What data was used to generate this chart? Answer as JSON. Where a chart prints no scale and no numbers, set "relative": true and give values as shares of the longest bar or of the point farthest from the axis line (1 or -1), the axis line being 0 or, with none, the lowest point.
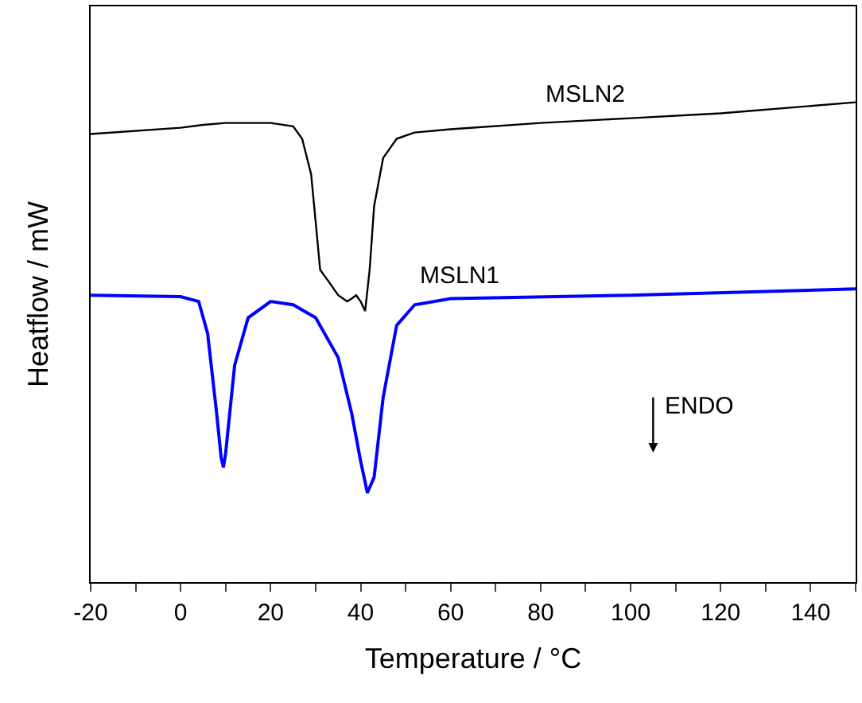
{
  "chart_data": {
    "type": "line",
    "relative": true,
    "xlabel": "Temperature / °C",
    "ylabel": "Heatflow / mW",
    "xlim": [
      -20,
      150
    ],
    "xticks": [
      -20,
      {
        "value": -10,
        "label": null
      },
      0,
      {
        "value": 10,
        "label": null
      },
      20,
      {
        "value": 30,
        "label": null
      },
      40,
      {
        "value": 50,
        "label": null
      },
      60,
      {
        "value": 70,
        "label": null
      },
      80,
      {
        "value": 90,
        "label": null
      },
      100,
      {
        "value": 110,
        "label": null
      },
      120,
      {
        "value": 130,
        "label": null
      },
      140,
      {
        "value": 150,
        "label": null
      }
    ],
    "legend": false,
    "marker": "none",
    "line_style": "solid",
    "tick_labels": "x",
    "annotations": [
      "ENDO"
    ],
    "series": [
      {
        "name": "MSLN2",
        "color": "#000000",
        "x": [
          -20,
          0,
          5,
          10,
          20,
          25,
          27,
          29,
          30,
          31,
          33,
          35,
          37,
          38,
          39,
          40,
          41,
          42,
          43,
          45,
          48,
          52,
          60,
          80,
          100,
          120,
          150
        ],
        "values": [
          0.934,
          0.947,
          0.953,
          0.957,
          0.957,
          0.95,
          0.924,
          0.85,
          0.751,
          0.651,
          0.625,
          0.598,
          0.585,
          0.591,
          0.598,
          0.585,
          0.565,
          0.651,
          0.784,
          0.884,
          0.924,
          0.937,
          0.944,
          0.957,
          0.967,
          0.977,
          1.0
        ]
      },
      {
        "name": "MSLN1",
        "color": "#0000ff",
        "x": [
          -20,
          0,
          4,
          6,
          8,
          9,
          9.5,
          10,
          12,
          15,
          20,
          25,
          30,
          35,
          38,
          40,
          41.5,
          43,
          45,
          48,
          52,
          60,
          100,
          150
        ],
        "values": [
          0.598,
          0.595,
          0.585,
          0.518,
          0.352,
          0.259,
          0.239,
          0.269,
          0.452,
          0.551,
          0.585,
          0.578,
          0.551,
          0.468,
          0.352,
          0.252,
          0.186,
          0.219,
          0.385,
          0.535,
          0.578,
          0.591,
          0.598,
          0.611
        ]
      }
    ]
  }
}
